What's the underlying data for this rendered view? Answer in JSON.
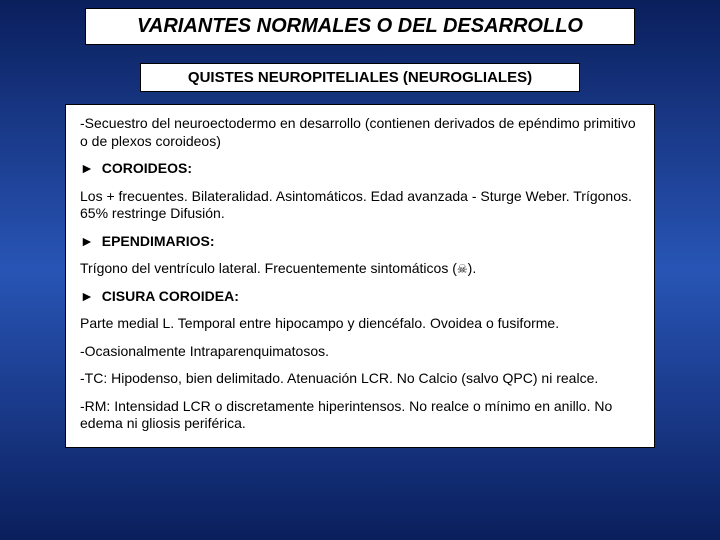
{
  "background": {
    "gradient_colors": [
      "#0a1f5c",
      "#1a3a8a",
      "#2855b5",
      "#1a3a8a",
      "#0a1f5c"
    ]
  },
  "title": {
    "text": "VARIANTES NORMALES O DEL DESARROLLO",
    "bg": "#ffffff",
    "border": "#000000",
    "fontsize": 20,
    "fontweight": "bold",
    "fontstyle": "italic",
    "color": "#000000"
  },
  "subtitle": {
    "text": "QUISTES NEUROPITELIALES (NEUROGLIALES)",
    "bg": "#ffffff",
    "border": "#000000",
    "fontsize": 15,
    "fontweight": "bold",
    "color": "#000000"
  },
  "content": {
    "bg": "#ffffff",
    "border": "#000000",
    "fontsize": 14,
    "color": "#000000",
    "intro": "-Secuestro del neuroectodermo en desarrollo (contienen derivados de  epéndimo primitivo o de plexos coroideos)",
    "sections": [
      {
        "heading": "COROIDEOS:",
        "body": "Los + frecuentes. Bilateralidad. Asintomáticos. Edad avanzada - Sturge Weber.  Trígonos. 65% restringe Difusión."
      },
      {
        "heading": "EPENDIMARIOS:",
        "body_pre": "Trígono del ventrículo lateral. Frecuentemente sintomáticos  (",
        "body_post": ")."
      },
      {
        "heading": "CISURA COROIDEA:",
        "body": "Parte medial  L. Temporal entre hipocampo y diencéfalo. Ovoidea o fusiforme."
      }
    ],
    "extras": [
      "-Ocasionalmente Intraparenquimatosos.",
      "-TC: Hipodenso, bien delimitado. Atenuación LCR. No Calcio (salvo QPC) ni realce.",
      "-RM: Intensidad    LCR  o discretamente hiperintensos.   No realce o mínimo en anillo. No edema ni gliosis periférica."
    ],
    "arrow_glyph": "►",
    "skull_glyph": "☠"
  }
}
